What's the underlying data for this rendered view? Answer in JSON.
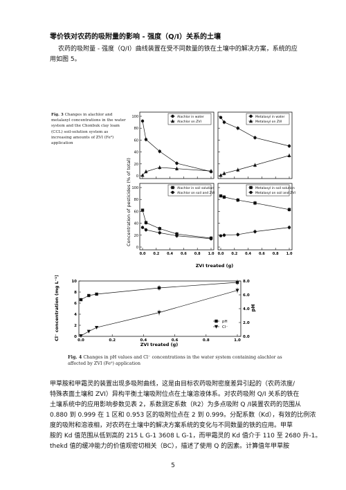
{
  "heading": "零价铁对农药的吸附量的影响 - 强度（Q/I）关系的土壤",
  "intro_lines": [
    "农药的吸附量 - 强度（Q/I）曲线装置在受不同数量的铁在土壤中的解决方案，系统的应",
    "用如图 5。"
  ],
  "fig3": {
    "caption_label": "Fig. 3",
    "caption_text": "Changes in alachlor and metalaxyl concentrations in the water system and the Chonbuk clay loam (CCL) soil-solution system as increasing amounts of ZVI (Fe⁰) application",
    "ylabel": "Concentration of pesticides (% of total)",
    "xlabel": "ZVI treated (g)",
    "x_ticks": [
      "0.0",
      "0.2",
      "0.4",
      "0.6",
      "0.8",
      "1.0"
    ],
    "y_ticks": [
      "0",
      "20",
      "40",
      "60",
      "80",
      "100"
    ],
    "panels": [
      {
        "legend": [
          "Alachlor in water",
          "Alachlor on ZVI"
        ]
      },
      {
        "legend": [
          "Metalaxyl in water",
          "Metalaxyl on ZVI"
        ]
      },
      {
        "legend": [
          "Alachlor in soil solution",
          "Alachlor on soil and ZVI"
        ]
      },
      {
        "legend": [
          "Metalaxyl in soil solution",
          "Metalaxyl on soil and ZVI"
        ]
      }
    ]
  },
  "fig4": {
    "caption_label": "Fig. 4",
    "caption_text": "Changes in pH values and Cl⁻ concentrations in the water system containing alachlor as affected by ZVI (Fe⁰) application",
    "ylabel_left": "Cl⁻ concentration (mg L⁻¹)",
    "ylabel_right": "pH",
    "xlabel": "ZVI treated (g)",
    "x_ticks": [
      "0.0",
      "0.2",
      "0.4",
      "0.6",
      "0.8",
      "1.0"
    ],
    "y_left_ticks": [
      "0",
      "2",
      "4",
      "6",
      "8",
      "10"
    ],
    "y_right_ticks": [
      "0.0",
      "2.0",
      "4.0",
      "6.0",
      "8.0"
    ],
    "legend": [
      "pH",
      "Cl⁻"
    ]
  },
  "body_lines": [
    "甲草胺和甲霜灵的装置出现多吸附曲线，这是由目标农药吸附密度差异引起的（农药浓度/",
    "特殊表面土壤和 ZVI）异构平衡土壤吸附位点在土壤溶液体系。对农药吸附 Q/I 关系的铁在",
    "土壤系统中的应用影响参数见表 2，系数测定系数（R2）为多点吸附 Q /I装置农药的范围从",
    "0.880 到 0.999 在 1 区和 0.953 区的吸附位点在 2 到 0.999。分配系数（Kd），有效的比例浓",
    "度的吸附和溶液相，对农药在土壤中的解决方案系统的变化与不同数量的铁的应用。甲草",
    "胺的 Kd 值范围从低到高的 215 L G-1 3608 L G-1，而甲霜灵的 Kd 值介于 110 至 2680 升-1。",
    "thekd 值的缓冲能力的价值观密切相关（BC），描述了使用 Q 的因素。计算值年甲草胺"
  ],
  "page_number": "5",
  "chart_data": [
    {
      "type": "line",
      "title": "Fig. 3",
      "xlabel": "ZVI treated (g)",
      "ylabel": "Concentration of pesticides (% of total)",
      "xlim": [
        0,
        1
      ],
      "ylim": [
        0,
        100
      ],
      "panels": [
        {
          "x": [
            0,
            0.05,
            0.25,
            0.5,
            1.0
          ],
          "series": [
            {
              "name": "Alachlor in water",
              "values": [
                92,
                61,
                41,
                21,
                7
              ]
            },
            {
              "name": "Alachlor on ZVI",
              "values": [
                1,
                7,
                14,
                12,
                8
              ]
            }
          ]
        },
        {
          "x": [
            0,
            0.05,
            0.25,
            0.5,
            1.0
          ],
          "series": [
            {
              "name": "Metalaxyl in water",
              "values": [
                98,
                90,
                80,
                64,
                50
              ]
            },
            {
              "name": "Metalaxyl on ZVI",
              "values": [
                1,
                4,
                10,
                18,
                34
              ]
            }
          ]
        },
        {
          "x": [
            0,
            0.05,
            0.25,
            0.5,
            1.0
          ],
          "series": [
            {
              "name": "Alachlor in soil solution",
              "values": [
                62,
                41,
                31,
                22,
                15
              ]
            },
            {
              "name": "Alachlor on soil and ZVI",
              "values": [
                33,
                29,
                24,
                19,
                14
              ]
            }
          ]
        },
        {
          "x": [
            0,
            0.05,
            0.25,
            0.5,
            1.0
          ],
          "series": [
            {
              "name": "Metalaxyl in soil solution",
              "values": [
                86,
                84,
                79,
                74,
                63
              ]
            },
            {
              "name": "Metalaxyl on soil and ZVI",
              "values": [
                19,
                20,
                21,
                26,
                33
              ]
            }
          ]
        }
      ]
    },
    {
      "type": "line",
      "title": "Fig. 4",
      "xlabel": "ZVI treated (g)",
      "ylabel": "Cl⁻ concentration (mg L⁻¹)",
      "y2label": "pH",
      "xlim": [
        0,
        1
      ],
      "ylim": [
        0,
        10
      ],
      "y2lim": [
        0,
        8
      ],
      "x": [
        0,
        0.05,
        0.1,
        0.5,
        1.0
      ],
      "series": [
        {
          "name": "pH",
          "axis": "right",
          "values": [
            5.3,
            5.9,
            6.1,
            7.0,
            7.8
          ]
        },
        {
          "name": "Cl⁻",
          "axis": "left",
          "values": [
            0.1,
            0.9,
            1.6,
            4.3,
            8.3
          ]
        }
      ]
    }
  ]
}
